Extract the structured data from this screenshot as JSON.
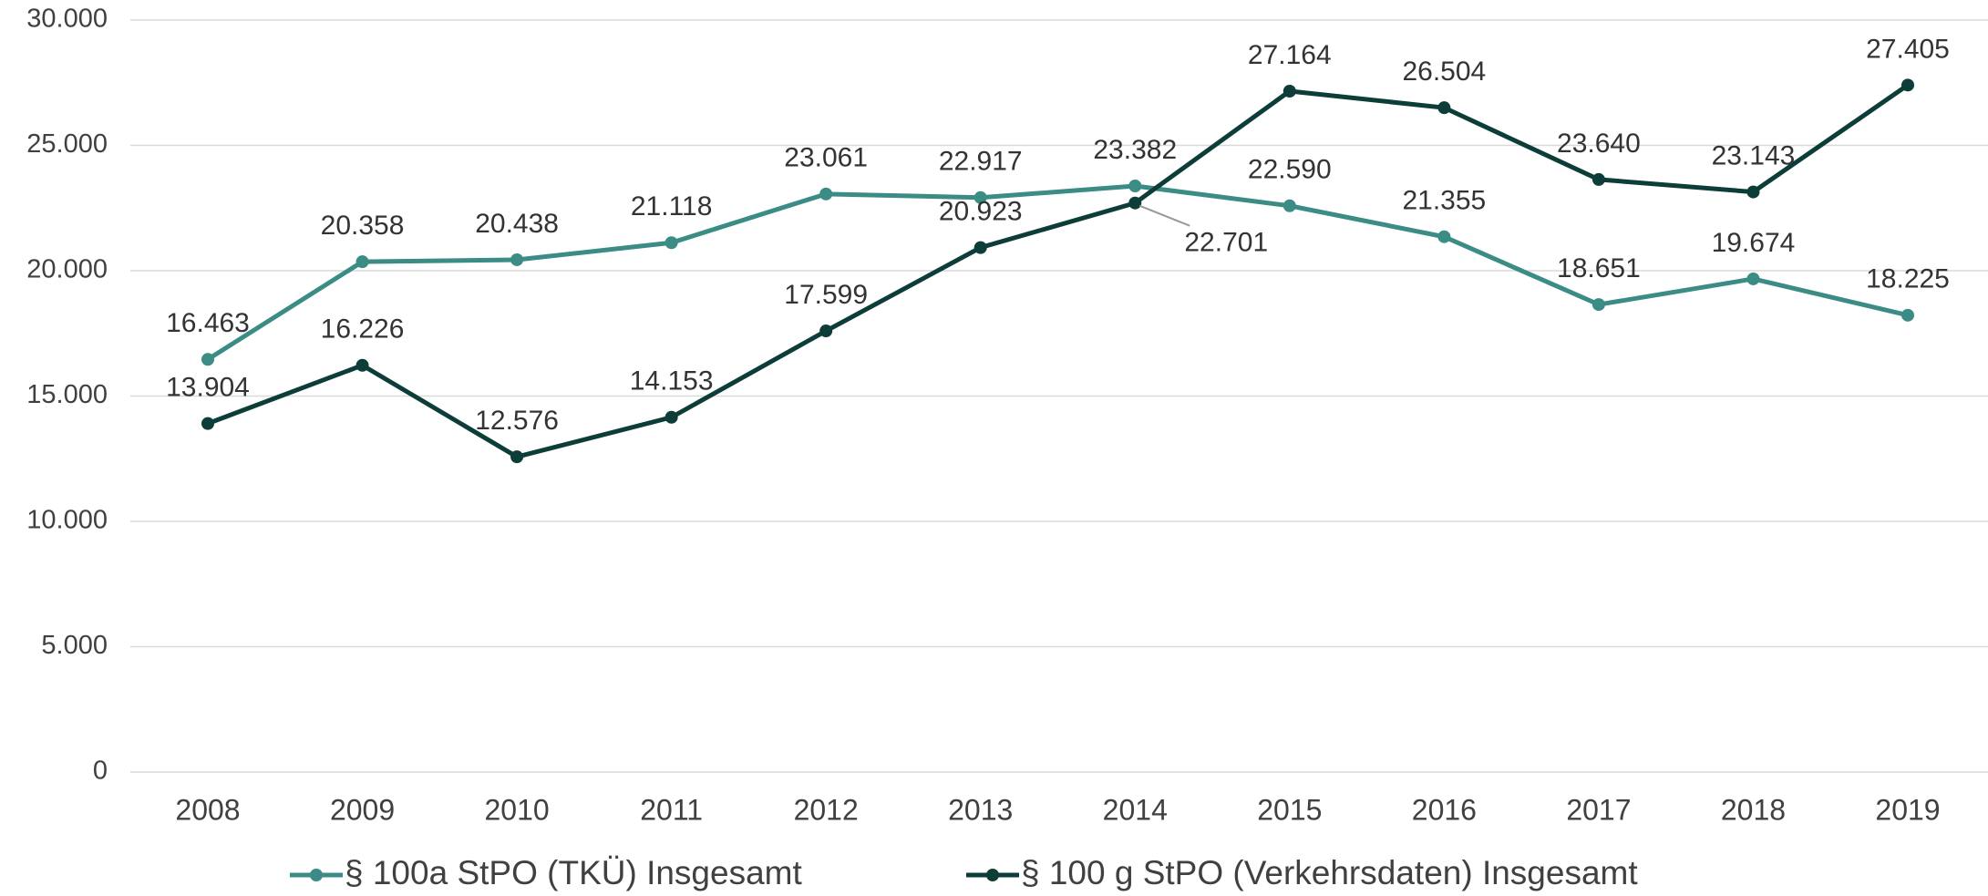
{
  "chart_data": {
    "type": "line",
    "categories": [
      "2008",
      "2009",
      "2010",
      "2011",
      "2012",
      "2013",
      "2014",
      "2015",
      "2016",
      "2017",
      "2018",
      "2019"
    ],
    "series": [
      {
        "name": "§ 100a StPO (TKÜ) Insgesamt",
        "color": "#3a8c84",
        "values": [
          16463,
          20358,
          20438,
          21118,
          23061,
          22917,
          23382,
          22590,
          21355,
          18651,
          19674,
          18225
        ],
        "value_labels": [
          "16.463",
          "20.358",
          "20.438",
          "21.118",
          "23.061",
          "22.917",
          "23.382",
          "22.590",
          "21.355",
          "18.651",
          "19.674",
          "18.225"
        ]
      },
      {
        "name": "§ 100 g StPO (Verkehrsdaten) Insgesamt",
        "color": "#0d3d38",
        "values": [
          13904,
          16226,
          12576,
          14153,
          17599,
          20923,
          22701,
          27164,
          26504,
          23640,
          23143,
          27405
        ],
        "value_labels": [
          "13.904",
          "16.226",
          "12.576",
          "14.153",
          "17.599",
          "20.923",
          "22.701",
          "27.164",
          "26.504",
          "23.640",
          "23.143",
          "27.405"
        ]
      }
    ],
    "ylim": [
      0,
      30000
    ],
    "yticks": [
      0,
      {
        "value": 5000,
        "label": "5.000"
      },
      {
        "value": 10000,
        "label": "10.000"
      },
      {
        "value": 15000,
        "label": "15.000"
      },
      {
        "value": 20000,
        "label": "20.000"
      },
      {
        "value": 25000,
        "label": "25.000"
      },
      {
        "value": 30000,
        "label": "30.000"
      }
    ],
    "grid": true,
    "legend": "bottom"
  }
}
